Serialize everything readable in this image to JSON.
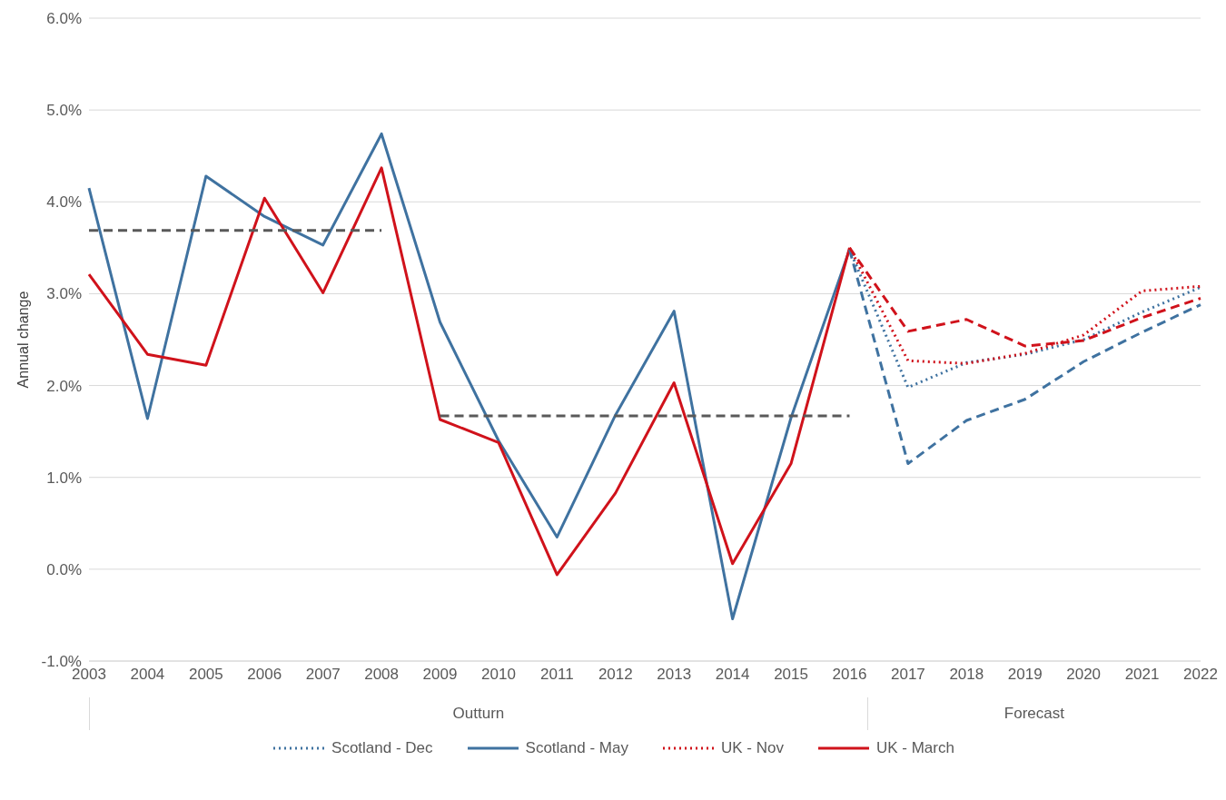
{
  "chart_data": {
    "type": "line",
    "ylabel": "Annual change",
    "categories": [
      "2003",
      "2004",
      "2005",
      "2006",
      "2007",
      "2008",
      "2009",
      "2010",
      "2011",
      "2012",
      "2013",
      "2014",
      "2015",
      "2016",
      "2017",
      "2018",
      "2019",
      "2020",
      "2021",
      "2022"
    ],
    "annotations": [
      "Outturn",
      "Forecast"
    ],
    "ylim": [
      -1,
      6
    ],
    "yticks": [
      {
        "value": -1,
        "label": "-1.0%"
      },
      {
        "value": 0,
        "label": "0.0%"
      },
      {
        "value": 1,
        "label": "1.0%"
      },
      {
        "value": 2,
        "label": "2.0%"
      },
      {
        "value": 3,
        "label": "3.0%"
      },
      {
        "value": 4,
        "label": "4.0%"
      },
      {
        "value": 5,
        "label": "5.0%"
      },
      {
        "value": 6,
        "label": "6.0%"
      }
    ],
    "grid": "y",
    "legend": "bottom",
    "marker": "none",
    "series": [
      {
        "name": "Scotland - Dec",
        "color": "#3f72a0",
        "line_style": "dotted",
        "values": [
          null,
          null,
          null,
          null,
          null,
          null,
          null,
          null,
          null,
          null,
          null,
          null,
          null,
          3.48,
          1.98,
          2.25,
          2.34,
          2.5,
          2.8,
          3.07
        ]
      },
      {
        "name": "Scotland - May",
        "color": "#3f72a0",
        "line_style": "solid",
        "values": [
          4.15,
          1.64,
          4.28,
          3.84,
          3.53,
          4.74,
          2.69,
          1.4,
          0.35,
          1.68,
          2.81,
          -0.54,
          1.65,
          3.48,
          null,
          null,
          null,
          null,
          null,
          null
        ]
      },
      {
        "name": "UK - Nov",
        "color": "#d0121b",
        "line_style": "dotted",
        "values": [
          null,
          null,
          null,
          null,
          null,
          null,
          null,
          null,
          null,
          null,
          null,
          null,
          null,
          3.5,
          2.27,
          2.24,
          2.35,
          2.55,
          3.03,
          3.08
        ]
      },
      {
        "name": "UK - March",
        "color": "#d0121b",
        "line_style": "solid",
        "values": [
          3.21,
          2.34,
          2.22,
          4.04,
          3.01,
          4.37,
          1.63,
          1.38,
          -0.06,
          0.83,
          2.03,
          0.06,
          1.15,
          3.5,
          null,
          null,
          null,
          null,
          null,
          null
        ]
      },
      {
        "color": "#3f72a0",
        "line_style": "dashed",
        "values": [
          null,
          null,
          null,
          null,
          null,
          null,
          null,
          null,
          null,
          null,
          null,
          null,
          null,
          3.48,
          1.15,
          1.62,
          1.85,
          2.26,
          2.58,
          2.88
        ]
      },
      {
        "color": "#d0121b",
        "line_style": "dashed",
        "values": [
          null,
          null,
          null,
          null,
          null,
          null,
          null,
          null,
          null,
          null,
          null,
          null,
          null,
          3.5,
          2.59,
          2.72,
          2.43,
          2.49,
          2.74,
          2.95
        ]
      },
      {
        "color": "#595959",
        "line_style": "dashed",
        "values": [
          3.69,
          3.69,
          3.69,
          3.69,
          3.69,
          3.69,
          null,
          null,
          null,
          null,
          null,
          null,
          null,
          null,
          null,
          null,
          null,
          null,
          null,
          null
        ]
      },
      {
        "color": "#595959",
        "line_style": "dashed",
        "values": [
          null,
          null,
          null,
          null,
          null,
          null,
          1.67,
          1.67,
          1.67,
          1.67,
          1.67,
          1.67,
          1.67,
          1.67,
          null,
          null,
          null,
          null,
          null,
          null
        ]
      }
    ]
  }
}
